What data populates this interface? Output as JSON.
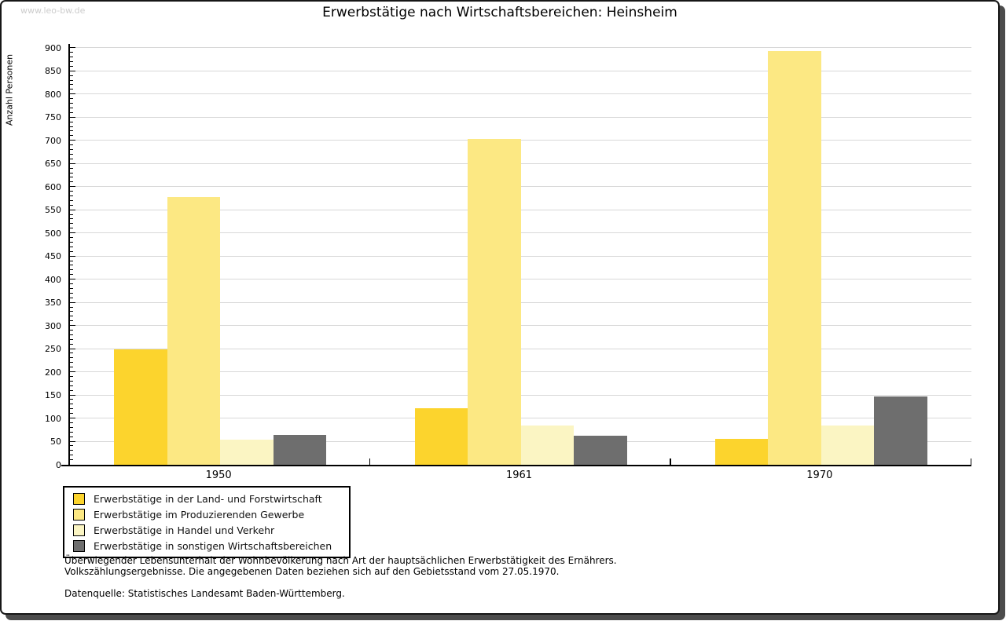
{
  "page": {
    "watermark": "www.leo-bw.de",
    "footnote_line1": "Überwiegender Lebensunterhalt der Wohnbevölkerung nach Art der hauptsächlichen Erwerbstätigkeit des Ernährers.",
    "footnote_line2": "Volkszählungsergebnisse. Die angegebenen Daten beziehen sich auf den Gebietsstand vom 27.05.1970.",
    "source_line": "Datenquelle: Statistisches Landesamt Baden-Württemberg."
  },
  "chart_data": {
    "type": "bar",
    "title": "Erwerbstätige nach Wirtschaftsbereichen: Heinsheim",
    "xlabel": "",
    "ylabel": "Anzahl Personen",
    "categories": [
      "1950",
      "1961",
      "1970"
    ],
    "series": [
      {
        "name": "Erwerbstätige in der Land- und Forstwirtschaft",
        "color": "#fcd42d",
        "values": [
          250,
          122,
          56
        ]
      },
      {
        "name": "Erwerbstätige im Produzierenden Gewerbe",
        "color": "#fce883",
        "values": [
          578,
          703,
          894
        ]
      },
      {
        "name": "Erwerbstätige in Handel und Verkehr",
        "color": "#fbf5c3",
        "values": [
          55,
          85,
          84
        ]
      },
      {
        "name": "Erwerbstätige in sonstigen Wirtschaftsbereichen",
        "color": "#6e6e6e",
        "values": [
          65,
          62,
          148
        ]
      }
    ],
    "ylim": [
      0,
      900
    ],
    "ytick_step": 50,
    "minor_tick_step": 10,
    "grid": true,
    "legend_position": "bottom-left",
    "grid_color": "#d8d8d8",
    "watermark_color": "#cccccc"
  }
}
